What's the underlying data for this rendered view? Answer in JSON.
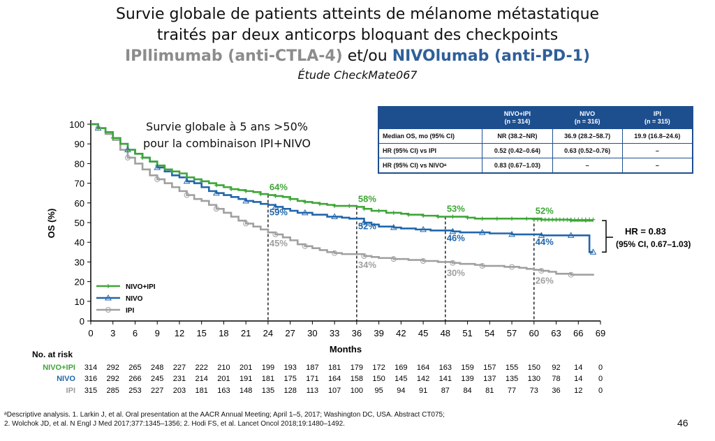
{
  "title": {
    "line1": "Survie globale de patients atteints de mélanome métastatique",
    "line2": "traités par deux anticorps bloquant des checkpoints",
    "line3_ipi": "IPIlimumab (anti-CTLA-4)",
    "line3_sep": " et/ou ",
    "line3_nivo": "NIVOlumab (anti-PD-1)",
    "subtitle": "Étude CheckMate067"
  },
  "annotation": {
    "line1": "Survie globale à 5 ans >50%",
    "line2": "pour la combinaison IPI+NIVO"
  },
  "hr_box": {
    "line1": "HR = 0.83",
    "line2": "(95% CI, 0.67–1.03)"
  },
  "stats_table": {
    "headers": [
      "",
      "NIVO+IPI\n(n = 314)",
      "NIVO\n(n = 316)",
      "IPI\n(n = 315)"
    ],
    "rows": [
      [
        "Median OS, mo (95% CI)",
        "NR (38.2–NR)",
        "36.9 (28.2–58.7)",
        "19.9 (16.8–24.6)"
      ],
      [
        "HR (95% CI) vs IPI",
        "0.52 (0.42–0.64)",
        "0.63 (0.52–0.76)",
        "–"
      ],
      [
        "HR (95% CI) vs NIVOᵃ",
        "0.83 (0.67–1.03)",
        "–",
        "–"
      ]
    ]
  },
  "risk_table": {
    "title": "No. at risk",
    "rows": [
      {
        "label": "NIVO+IPI",
        "values": [
          314,
          292,
          265,
          248,
          227,
          222,
          210,
          201,
          199,
          193,
          187,
          181,
          179,
          172,
          169,
          164,
          163,
          159,
          157,
          155,
          150,
          92,
          14,
          0
        ]
      },
      {
        "label": "NIVO",
        "values": [
          316,
          292,
          266,
          245,
          231,
          214,
          201,
          191,
          181,
          175,
          171,
          164,
          158,
          150,
          145,
          142,
          141,
          139,
          137,
          135,
          130,
          78,
          14,
          0
        ]
      },
      {
        "label": "IPI",
        "values": [
          315,
          285,
          253,
          227,
          203,
          181,
          163,
          148,
          135,
          128,
          113,
          107,
          100,
          95,
          94,
          91,
          87,
          84,
          81,
          77,
          73,
          36,
          12,
          0
        ]
      }
    ]
  },
  "footnote": {
    "line1": "ᵃDescriptive analysis. 1. Larkin J, et al. Oral presentation at the AACR Annual Meeting; April 1–5, 2017; Washington DC, USA. Abstract CT075;",
    "line2": "2. Wolchok JD, et al. N Engl J Med 2017;377:1345–1356; 2. Hodi FS, et al. Lancet Oncol 2018;19:1480–1492."
  },
  "page_number": "46",
  "colors": {
    "nivo_ipi": "#3da637",
    "nivo": "#2166ac",
    "ipi": "#a0a0a0",
    "table_header": "#1d4f8f"
  },
  "chart_data": {
    "type": "line",
    "xlabel": "Months",
    "ylabel": "OS (%)",
    "xlim": [
      0,
      69
    ],
    "ylim": [
      0,
      100
    ],
    "x_ticks": [
      0,
      3,
      6,
      9,
      12,
      15,
      18,
      21,
      24,
      27,
      30,
      33,
      36,
      39,
      42,
      45,
      48,
      51,
      54,
      57,
      60,
      63,
      66,
      69
    ],
    "y_ticks": [
      0,
      10,
      20,
      30,
      40,
      50,
      60,
      70,
      80,
      90,
      100
    ],
    "legend_position": "bottom-left",
    "reference_lines_x": [
      24,
      36,
      48,
      60
    ],
    "series": [
      {
        "name": "NIVO+IPI",
        "color": "#3da637",
        "marker": "plus",
        "x": [
          0,
          1,
          2,
          3,
          4,
          5,
          6,
          7,
          8,
          9,
          10,
          11,
          12,
          13,
          14,
          15,
          16,
          17,
          18,
          19,
          20,
          21,
          22,
          23,
          24,
          25,
          26,
          27,
          28,
          29,
          30,
          31,
          32,
          33,
          34,
          35,
          36,
          37,
          38,
          39,
          40,
          41,
          42,
          43,
          44,
          45,
          46,
          47,
          48,
          49,
          50,
          51,
          52,
          53,
          54,
          55,
          56,
          57,
          58,
          59,
          60,
          61,
          62,
          63,
          64,
          65,
          66,
          67,
          68
        ],
        "y": [
          100,
          98,
          96,
          93,
          90,
          87,
          85,
          83,
          81,
          79,
          77,
          76,
          75,
          73,
          72,
          71,
          70,
          69,
          68,
          67,
          66.5,
          66,
          65.5,
          64.5,
          64,
          63.5,
          63,
          62,
          61,
          60.5,
          60,
          59.5,
          59,
          58.5,
          58.5,
          58.5,
          58,
          57,
          56,
          56,
          55,
          55,
          54.5,
          54,
          54,
          53.5,
          53.5,
          53,
          53,
          53,
          53,
          52.5,
          52,
          52,
          52,
          52,
          52,
          52,
          52,
          52,
          52,
          51.5,
          51.5,
          51.5,
          51.5,
          51,
          51,
          51,
          51
        ]
      },
      {
        "name": "NIVO",
        "color": "#2166ac",
        "marker": "triangle",
        "x": [
          0,
          1,
          2,
          3,
          4,
          5,
          6,
          7,
          8,
          9,
          10,
          11,
          12,
          13,
          14,
          15,
          16,
          17,
          18,
          19,
          20,
          21,
          22,
          23,
          24,
          25,
          26,
          27,
          28,
          29,
          30,
          31,
          32,
          33,
          34,
          35,
          36,
          37,
          38,
          39,
          40,
          41,
          42,
          43,
          44,
          45,
          46,
          47,
          48,
          49,
          50,
          51,
          52,
          53,
          54,
          55,
          56,
          57,
          58,
          59,
          60,
          61,
          62,
          63,
          64,
          65,
          66,
          67,
          67.5,
          68
        ],
        "y": [
          100,
          98,
          96,
          93,
          90,
          87,
          85,
          83,
          81,
          78,
          76,
          74,
          73,
          71,
          70,
          68,
          66,
          65,
          64,
          63,
          62,
          61,
          60.5,
          59.5,
          59,
          58,
          57,
          56,
          55,
          55,
          54,
          54,
          53,
          53,
          52.5,
          52,
          52,
          50,
          49,
          48,
          48,
          47.5,
          47,
          47,
          46.5,
          46.5,
          46,
          46,
          46,
          45.5,
          45,
          45,
          45,
          45,
          44.5,
          44.5,
          44.5,
          44,
          44,
          44,
          44,
          43.5,
          43.5,
          43.5,
          43.5,
          43.5,
          43.5,
          43.5,
          35,
          35
        ]
      },
      {
        "name": "IPI",
        "color": "#a0a0a0",
        "marker": "circle",
        "x": [
          0,
          1,
          2,
          3,
          4,
          5,
          6,
          7,
          8,
          9,
          10,
          11,
          12,
          13,
          14,
          15,
          16,
          17,
          18,
          19,
          20,
          21,
          22,
          23,
          24,
          25,
          26,
          27,
          28,
          29,
          30,
          31,
          32,
          33,
          34,
          35,
          36,
          37,
          38,
          39,
          40,
          41,
          42,
          43,
          44,
          45,
          46,
          47,
          48,
          49,
          50,
          51,
          52,
          53,
          54,
          55,
          56,
          57,
          58,
          59,
          60,
          61,
          62,
          63,
          64,
          65,
          66,
          67,
          68
        ],
        "y": [
          100,
          98,
          95,
          92,
          87,
          83,
          80,
          77,
          74,
          72,
          70,
          68,
          66,
          64,
          62,
          61,
          59,
          57,
          55,
          53,
          51,
          49.5,
          48,
          46.5,
          45,
          44,
          42.5,
          41,
          39,
          38,
          37,
          36,
          35,
          34.5,
          34,
          34,
          34,
          33,
          32.5,
          32,
          32,
          31.5,
          31.5,
          31,
          31,
          30.5,
          30.5,
          30,
          30,
          29.5,
          29,
          29,
          28.5,
          28,
          28,
          28,
          27.5,
          27.5,
          27,
          26.5,
          26,
          25.5,
          25,
          24,
          24,
          23.5,
          23.5,
          23.5,
          23
        ]
      }
    ],
    "labels": [
      {
        "text": "64%",
        "x": 24,
        "y": 64,
        "series": "NIVO+IPI"
      },
      {
        "text": "58%",
        "x": 36,
        "y": 58,
        "series": "NIVO+IPI"
      },
      {
        "text": "53%",
        "x": 48,
        "y": 53,
        "series": "NIVO+IPI"
      },
      {
        "text": "52%",
        "x": 60,
        "y": 52,
        "series": "NIVO+IPI"
      },
      {
        "text": "59%",
        "x": 24,
        "y": 59,
        "series": "NIVO"
      },
      {
        "text": "52%",
        "x": 36,
        "y": 52,
        "series": "NIVO"
      },
      {
        "text": "46%",
        "x": 48,
        "y": 46,
        "series": "NIVO"
      },
      {
        "text": "44%",
        "x": 60,
        "y": 44,
        "series": "NIVO"
      },
      {
        "text": "45%",
        "x": 24,
        "y": 45,
        "series": "IPI"
      },
      {
        "text": "34%",
        "x": 36,
        "y": 34,
        "series": "IPI"
      },
      {
        "text": "30%",
        "x": 48,
        "y": 30,
        "series": "IPI"
      },
      {
        "text": "26%",
        "x": 60,
        "y": 26,
        "series": "IPI"
      }
    ]
  }
}
